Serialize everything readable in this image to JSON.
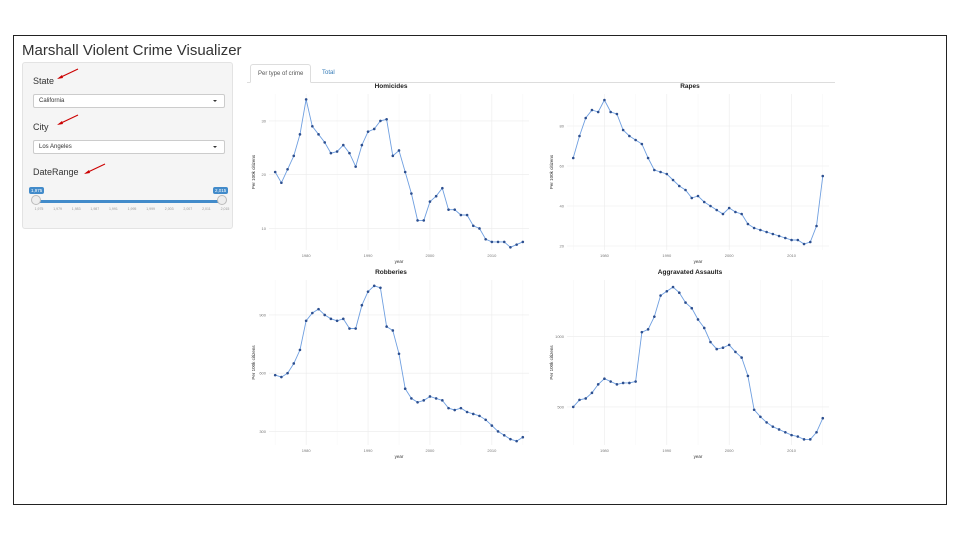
{
  "app": {
    "title": "Marshall Violent Crime Visualizer"
  },
  "sidebar": {
    "state_label": "State",
    "state_value": "California",
    "city_label": "City",
    "city_value": "Los Angeles",
    "date_label": "DateRange",
    "range_min": "1,975",
    "range_max": "2,015",
    "ticks": [
      "1,975",
      "1,979",
      "1,983",
      "1,987",
      "1,991",
      "1,995",
      "1,999",
      "2,003",
      "2,007",
      "2,011",
      "2,015"
    ]
  },
  "tabs": [
    {
      "label": "Per type of crime",
      "active": true
    },
    {
      "label": "Total",
      "active": false
    }
  ],
  "chart_data": [
    {
      "type": "line",
      "title": "Homicides",
      "xlabel": "year",
      "ylabel": "Per 100k citizens",
      "x": [
        1975,
        1976,
        1977,
        1978,
        1979,
        1980,
        1981,
        1982,
        1983,
        1984,
        1985,
        1986,
        1987,
        1988,
        1989,
        1990,
        1991,
        1992,
        1993,
        1994,
        1995,
        1996,
        1997,
        1998,
        1999,
        2000,
        2001,
        2002,
        2003,
        2004,
        2005,
        2006,
        2007,
        2008,
        2009,
        2010,
        2011,
        2012,
        2013,
        2014,
        2015
      ],
      "y": [
        20.5,
        18.5,
        21,
        23.5,
        27.5,
        34,
        29,
        27.5,
        26,
        24,
        24.3,
        25.5,
        24,
        21.5,
        25.5,
        28,
        28.5,
        30,
        30.3,
        23.5,
        24.5,
        20.5,
        16.5,
        11.5,
        11.5,
        15,
        16,
        17.5,
        13.5,
        13.5,
        12.5,
        12.5,
        10.5,
        10,
        8,
        7.5,
        7.5,
        7.5,
        6.5,
        7,
        7.5
      ],
      "xlim": [
        1974,
        2016
      ],
      "ylim": [
        6,
        35
      ],
      "xticks": [
        1980,
        1990,
        2000,
        2010
      ],
      "xtick_labels": [
        "1980",
        "1990",
        "2000",
        "2010"
      ],
      "yticks": [
        10,
        20,
        30
      ],
      "ytick_labels": [
        "10",
        "20",
        "30"
      ],
      "grid": true
    },
    {
      "type": "line",
      "title": "Rapes",
      "xlabel": "year",
      "ylabel": "Per 100k citizens",
      "x": [
        1975,
        1976,
        1977,
        1978,
        1979,
        1980,
        1981,
        1982,
        1983,
        1984,
        1985,
        1986,
        1987,
        1988,
        1989,
        1990,
        1991,
        1992,
        1993,
        1994,
        1995,
        1996,
        1997,
        1998,
        1999,
        2000,
        2001,
        2002,
        2003,
        2004,
        2005,
        2006,
        2007,
        2008,
        2009,
        2010,
        2011,
        2012,
        2013,
        2014,
        2015
      ],
      "y": [
        64,
        75,
        84,
        88,
        87,
        93,
        87,
        86,
        78,
        75,
        73,
        71,
        64,
        58,
        57,
        56,
        53,
        50,
        48,
        44,
        45,
        42,
        40,
        38,
        36,
        39,
        37,
        36,
        31,
        29,
        28,
        27,
        26,
        25,
        24,
        23,
        23,
        21,
        22,
        30,
        55
      ],
      "xlim": [
        1974,
        2016
      ],
      "ylim": [
        18,
        96
      ],
      "xticks": [
        1980,
        1990,
        2000,
        2010
      ],
      "xtick_labels": [
        "1980",
        "1990",
        "2000",
        "2010"
      ],
      "yticks": [
        20,
        40,
        60,
        80
      ],
      "ytick_labels": [
        "20",
        "40",
        "60",
        "80"
      ],
      "grid": true
    },
    {
      "type": "line",
      "title": "Robberies",
      "xlabel": "year",
      "ylabel": "Per 100k citizens",
      "x": [
        1975,
        1976,
        1977,
        1978,
        1979,
        1980,
        1981,
        1982,
        1983,
        1984,
        1985,
        1986,
        1987,
        1988,
        1989,
        1990,
        1991,
        1992,
        1993,
        1994,
        1995,
        1996,
        1997,
        1998,
        1999,
        2000,
        2001,
        2002,
        2003,
        2004,
        2005,
        2006,
        2007,
        2008,
        2009,
        2010,
        2011,
        2012,
        2013,
        2014,
        2015
      ],
      "y": [
        590,
        580,
        600,
        650,
        720,
        870,
        910,
        930,
        900,
        880,
        870,
        880,
        830,
        830,
        950,
        1020,
        1050,
        1040,
        840,
        820,
        700,
        520,
        470,
        450,
        460,
        480,
        470,
        460,
        420,
        410,
        420,
        400,
        390,
        380,
        360,
        330,
        300,
        280,
        260,
        250,
        270
      ],
      "xlim": [
        1974,
        2016
      ],
      "ylim": [
        230,
        1080
      ],
      "xticks": [
        1980,
        1990,
        2000,
        2010
      ],
      "xtick_labels": [
        "1980",
        "1990",
        "2000",
        "2010"
      ],
      "yticks": [
        300,
        600,
        900
      ],
      "ytick_labels": [
        "300",
        "600",
        "900"
      ],
      "grid": true
    },
    {
      "type": "line",
      "title": "Aggravated Assaults",
      "xlabel": "year",
      "ylabel": "Per 100k citizens",
      "x": [
        1975,
        1976,
        1977,
        1978,
        1979,
        1980,
        1981,
        1982,
        1983,
        1984,
        1985,
        1986,
        1987,
        1988,
        1989,
        1990,
        1991,
        1992,
        1993,
        1994,
        1995,
        1996,
        1997,
        1998,
        1999,
        2000,
        2001,
        2002,
        2003,
        2004,
        2005,
        2006,
        2007,
        2008,
        2009,
        2010,
        2011,
        2012,
        2013,
        2014,
        2015
      ],
      "y": [
        500,
        550,
        560,
        600,
        660,
        700,
        680,
        660,
        670,
        670,
        680,
        1030,
        1050,
        1140,
        1290,
        1320,
        1350,
        1310,
        1240,
        1200,
        1120,
        1060,
        960,
        910,
        920,
        940,
        890,
        850,
        720,
        480,
        430,
        390,
        360,
        340,
        320,
        300,
        290,
        270,
        270,
        320,
        420
      ],
      "xlim": [
        1974,
        2016
      ],
      "ylim": [
        230,
        1400
      ],
      "xticks": [
        1980,
        1990,
        2000,
        2010
      ],
      "xtick_labels": [
        "1980",
        "1990",
        "2000",
        "2010"
      ],
      "yticks": [
        500,
        1000
      ],
      "ytick_labels": [
        "500",
        "1000"
      ],
      "grid": true
    }
  ]
}
